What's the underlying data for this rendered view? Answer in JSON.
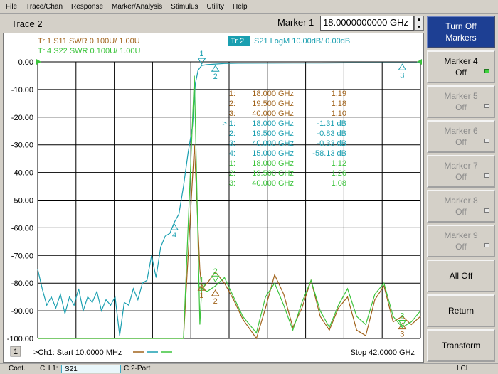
{
  "menu": [
    "File",
    "Trace/Chan",
    "Response",
    "Marker/Analysis",
    "Stimulus",
    "Utility",
    "Help"
  ],
  "trace_title": "Trace 2",
  "marker_entry": {
    "label": "Marker 1",
    "value": "18.0000000000 GHz"
  },
  "softkeys": [
    {
      "line1": "Turn Off",
      "line2": "Markers",
      "style": "header"
    },
    {
      "line1": "Marker 4",
      "line2": "Off",
      "style": "normal",
      "led": "on"
    },
    {
      "line1": "Marker 5",
      "line2": "Off",
      "style": "disabled",
      "led": "off"
    },
    {
      "line1": "Marker 6",
      "line2": "Off",
      "style": "disabled",
      "led": "off"
    },
    {
      "line1": "Marker 7",
      "line2": "Off",
      "style": "disabled",
      "led": "off"
    },
    {
      "line1": "Marker 8",
      "line2": "Off",
      "style": "disabled",
      "led": "off"
    },
    {
      "line1": "Marker 9",
      "line2": "Off",
      "style": "disabled",
      "led": "off"
    },
    {
      "line1": "All Off",
      "line2": "",
      "style": "plain"
    },
    {
      "line1": "Return",
      "line2": "",
      "style": "plain"
    },
    {
      "line1": "Transform",
      "line2": "",
      "style": "plain"
    }
  ],
  "colors": {
    "tr1": "#a0621a",
    "tr2": "#1a9fb0",
    "tr4": "#3cc43c",
    "tr2_badge_bg": "#1a9fb0",
    "grid": "#000000"
  },
  "trace_legend": [
    {
      "text": "Tr  1   S11  SWR  0.100U/   1.00U",
      "color_key": "tr1",
      "active": false
    },
    {
      "text": "Tr  4   S22  SWR  0.100U/   1.00U",
      "color_key": "tr4",
      "active": false
    },
    {
      "badge": "Tr  2",
      "text": "S21  LogM  10.00dB/   0.00dB",
      "color_key": "tr2",
      "active": true
    }
  ],
  "marker_table": [
    {
      "num": "1:",
      "freq": "18.000 GHz",
      "value": "1.19",
      "color_key": "tr1"
    },
    {
      "num": "2:",
      "freq": "19.500 GHz",
      "value": "1.18",
      "color_key": "tr1"
    },
    {
      "num": "3:",
      "freq": "40.000 GHz",
      "value": "1.10",
      "color_key": "tr1"
    },
    {
      "num": "> 1:",
      "freq": "18.000 GHz",
      "value": "-1.31  dB",
      "color_key": "tr2"
    },
    {
      "num": "2:",
      "freq": "19.500 GHz",
      "value": "-0.83  dB",
      "color_key": "tr2"
    },
    {
      "num": "3:",
      "freq": "40.000 GHz",
      "value": "-0.33  dB",
      "color_key": "tr2"
    },
    {
      "num": "4:",
      "freq": "15.000 GHz",
      "value": "-58.13  dB",
      "color_key": "tr2"
    },
    {
      "num": "1:",
      "freq": "18.000 GHz",
      "value": "1.12",
      "color_key": "tr4"
    },
    {
      "num": "2:",
      "freq": "19.500 GHz",
      "value": "1.26",
      "color_key": "tr4"
    },
    {
      "num": "3:",
      "freq": "40.000 GHz",
      "value": "1.08",
      "color_key": "tr4"
    }
  ],
  "chart_data": {
    "type": "line",
    "x_unit": "GHz",
    "xlim": [
      0.01,
      42.0
    ],
    "ylim": [
      -100,
      0
    ],
    "y_ticks": [
      "0.00",
      "-10.00",
      "-20.00",
      "-30.00",
      "-40.00",
      "-50.00",
      "-60.00",
      "-70.00",
      "-80.00",
      "-90.00",
      "-100.00"
    ],
    "grid": true,
    "series": [
      {
        "name": "Tr 1 S11 SWR",
        "color_key": "tr1",
        "x": [
          0.01,
          16.0,
          17.2,
          17.8,
          18.0,
          18.6,
          19.5,
          20.5,
          21.5,
          22.5,
          24.0,
          25.0,
          26.0,
          27.0,
          28.0,
          29.0,
          30.0,
          31.0,
          32.0,
          33.0,
          34.0,
          35.0,
          36.0,
          37.0,
          38.0,
          39.0,
          40.0,
          41.0,
          42.0
        ],
        "y": [
          -100,
          -100,
          -30,
          -75,
          -82,
          -80,
          -76,
          -80,
          -86,
          -93,
          -100,
          -89,
          -77,
          -84,
          -96,
          -89,
          -79,
          -92,
          -97,
          -89,
          -85,
          -97,
          -99,
          -86,
          -81,
          -94,
          -92,
          -95,
          -92
        ]
      },
      {
        "name": "Tr 2 S21 LogM",
        "color_key": "tr2",
        "x": [
          0.01,
          0.5,
          1.0,
          1.5,
          2.0,
          2.5,
          3.0,
          3.5,
          4.0,
          4.5,
          5.0,
          5.5,
          6.0,
          6.5,
          7.0,
          7.5,
          8.0,
          8.5,
          9.0,
          9.5,
          10.0,
          10.5,
          11.0,
          11.5,
          12.0,
          12.5,
          13.0,
          13.5,
          14.0,
          14.5,
          15.0,
          15.5,
          16.0,
          16.5,
          17.0,
          17.3,
          17.6,
          18.0,
          18.6,
          19.5,
          20.5,
          22.0,
          25.0,
          28.0,
          31.0,
          34.0,
          37.0,
          40.0,
          42.0
        ],
        "y": [
          -75,
          -82,
          -88,
          -85,
          -89,
          -84,
          -91,
          -85,
          -88,
          -82,
          -90,
          -85,
          -87,
          -83,
          -90,
          -86,
          -88,
          -85,
          -99,
          -87,
          -88,
          -82,
          -86,
          -80,
          -79,
          -70,
          -78,
          -67,
          -63,
          -62,
          -58,
          -55,
          -45,
          -33,
          -23,
          -8,
          -3,
          -1.3,
          -1.0,
          -0.8,
          -0.6,
          -0.5,
          -0.45,
          -0.4,
          -0.4,
          -0.35,
          -0.35,
          -0.33,
          -0.33
        ]
      },
      {
        "name": "Tr 4 S22 SWR",
        "color_key": "tr4",
        "x": [
          0.01,
          16.0,
          17.2,
          17.8,
          18.0,
          18.6,
          19.5,
          20.5,
          21.5,
          22.5,
          24.0,
          25.0,
          26.0,
          27.0,
          28.0,
          29.0,
          30.0,
          31.0,
          32.0,
          33.0,
          34.0,
          35.0,
          36.0,
          37.0,
          38.0,
          39.0,
          40.0,
          41.0,
          42.0
        ],
        "y": [
          -100,
          -100,
          -5,
          -95,
          -82,
          -83,
          -81,
          -78,
          -85,
          -92,
          -98,
          -85,
          -80,
          -88,
          -97,
          -87,
          -79,
          -90,
          -96,
          -88,
          -82,
          -92,
          -95,
          -84,
          -80,
          -92,
          -96,
          -94,
          -90
        ]
      }
    ],
    "markers": [
      {
        "trace_key": "tr2",
        "x": 18.0,
        "y": -1.31,
        "label": "1",
        "dir": "down"
      },
      {
        "trace_key": "tr2",
        "x": 19.5,
        "y": -0.83,
        "label": "2",
        "dir": "up"
      },
      {
        "trace_key": "tr2",
        "x": 40.0,
        "y": -0.33,
        "label": "3",
        "dir": "up"
      },
      {
        "trace_key": "tr2",
        "x": 15.0,
        "y": -58.13,
        "label": "4",
        "dir": "up"
      },
      {
        "trace_key": "tr1",
        "x": 18.0,
        "y": -80,
        "label": "1",
        "dir": "up"
      },
      {
        "trace_key": "tr1",
        "x": 19.5,
        "y": -82,
        "label": "2",
        "dir": "up"
      },
      {
        "trace_key": "tr1",
        "x": 40.0,
        "y": -94,
        "label": "3",
        "dir": "up"
      },
      {
        "trace_key": "tr4",
        "x": 18.0,
        "y": -83,
        "label": "1",
        "dir": "down"
      },
      {
        "trace_key": "tr4",
        "x": 19.5,
        "y": -80,
        "label": "2",
        "dir": "down"
      },
      {
        "trace_key": "tr4",
        "x": 40.0,
        "y": -96,
        "label": "3",
        "dir": "down"
      }
    ]
  },
  "channel_footer": {
    "channel_badge": "1",
    "start": ">Ch1: Start  10.0000 MHz",
    "stop": "Stop  42.0000 GHz"
  },
  "status_bar": {
    "mode": "Cont.",
    "channel": "CH 1:",
    "param": "S21",
    "cal": "C  2-Port",
    "lcl": "LCL"
  }
}
